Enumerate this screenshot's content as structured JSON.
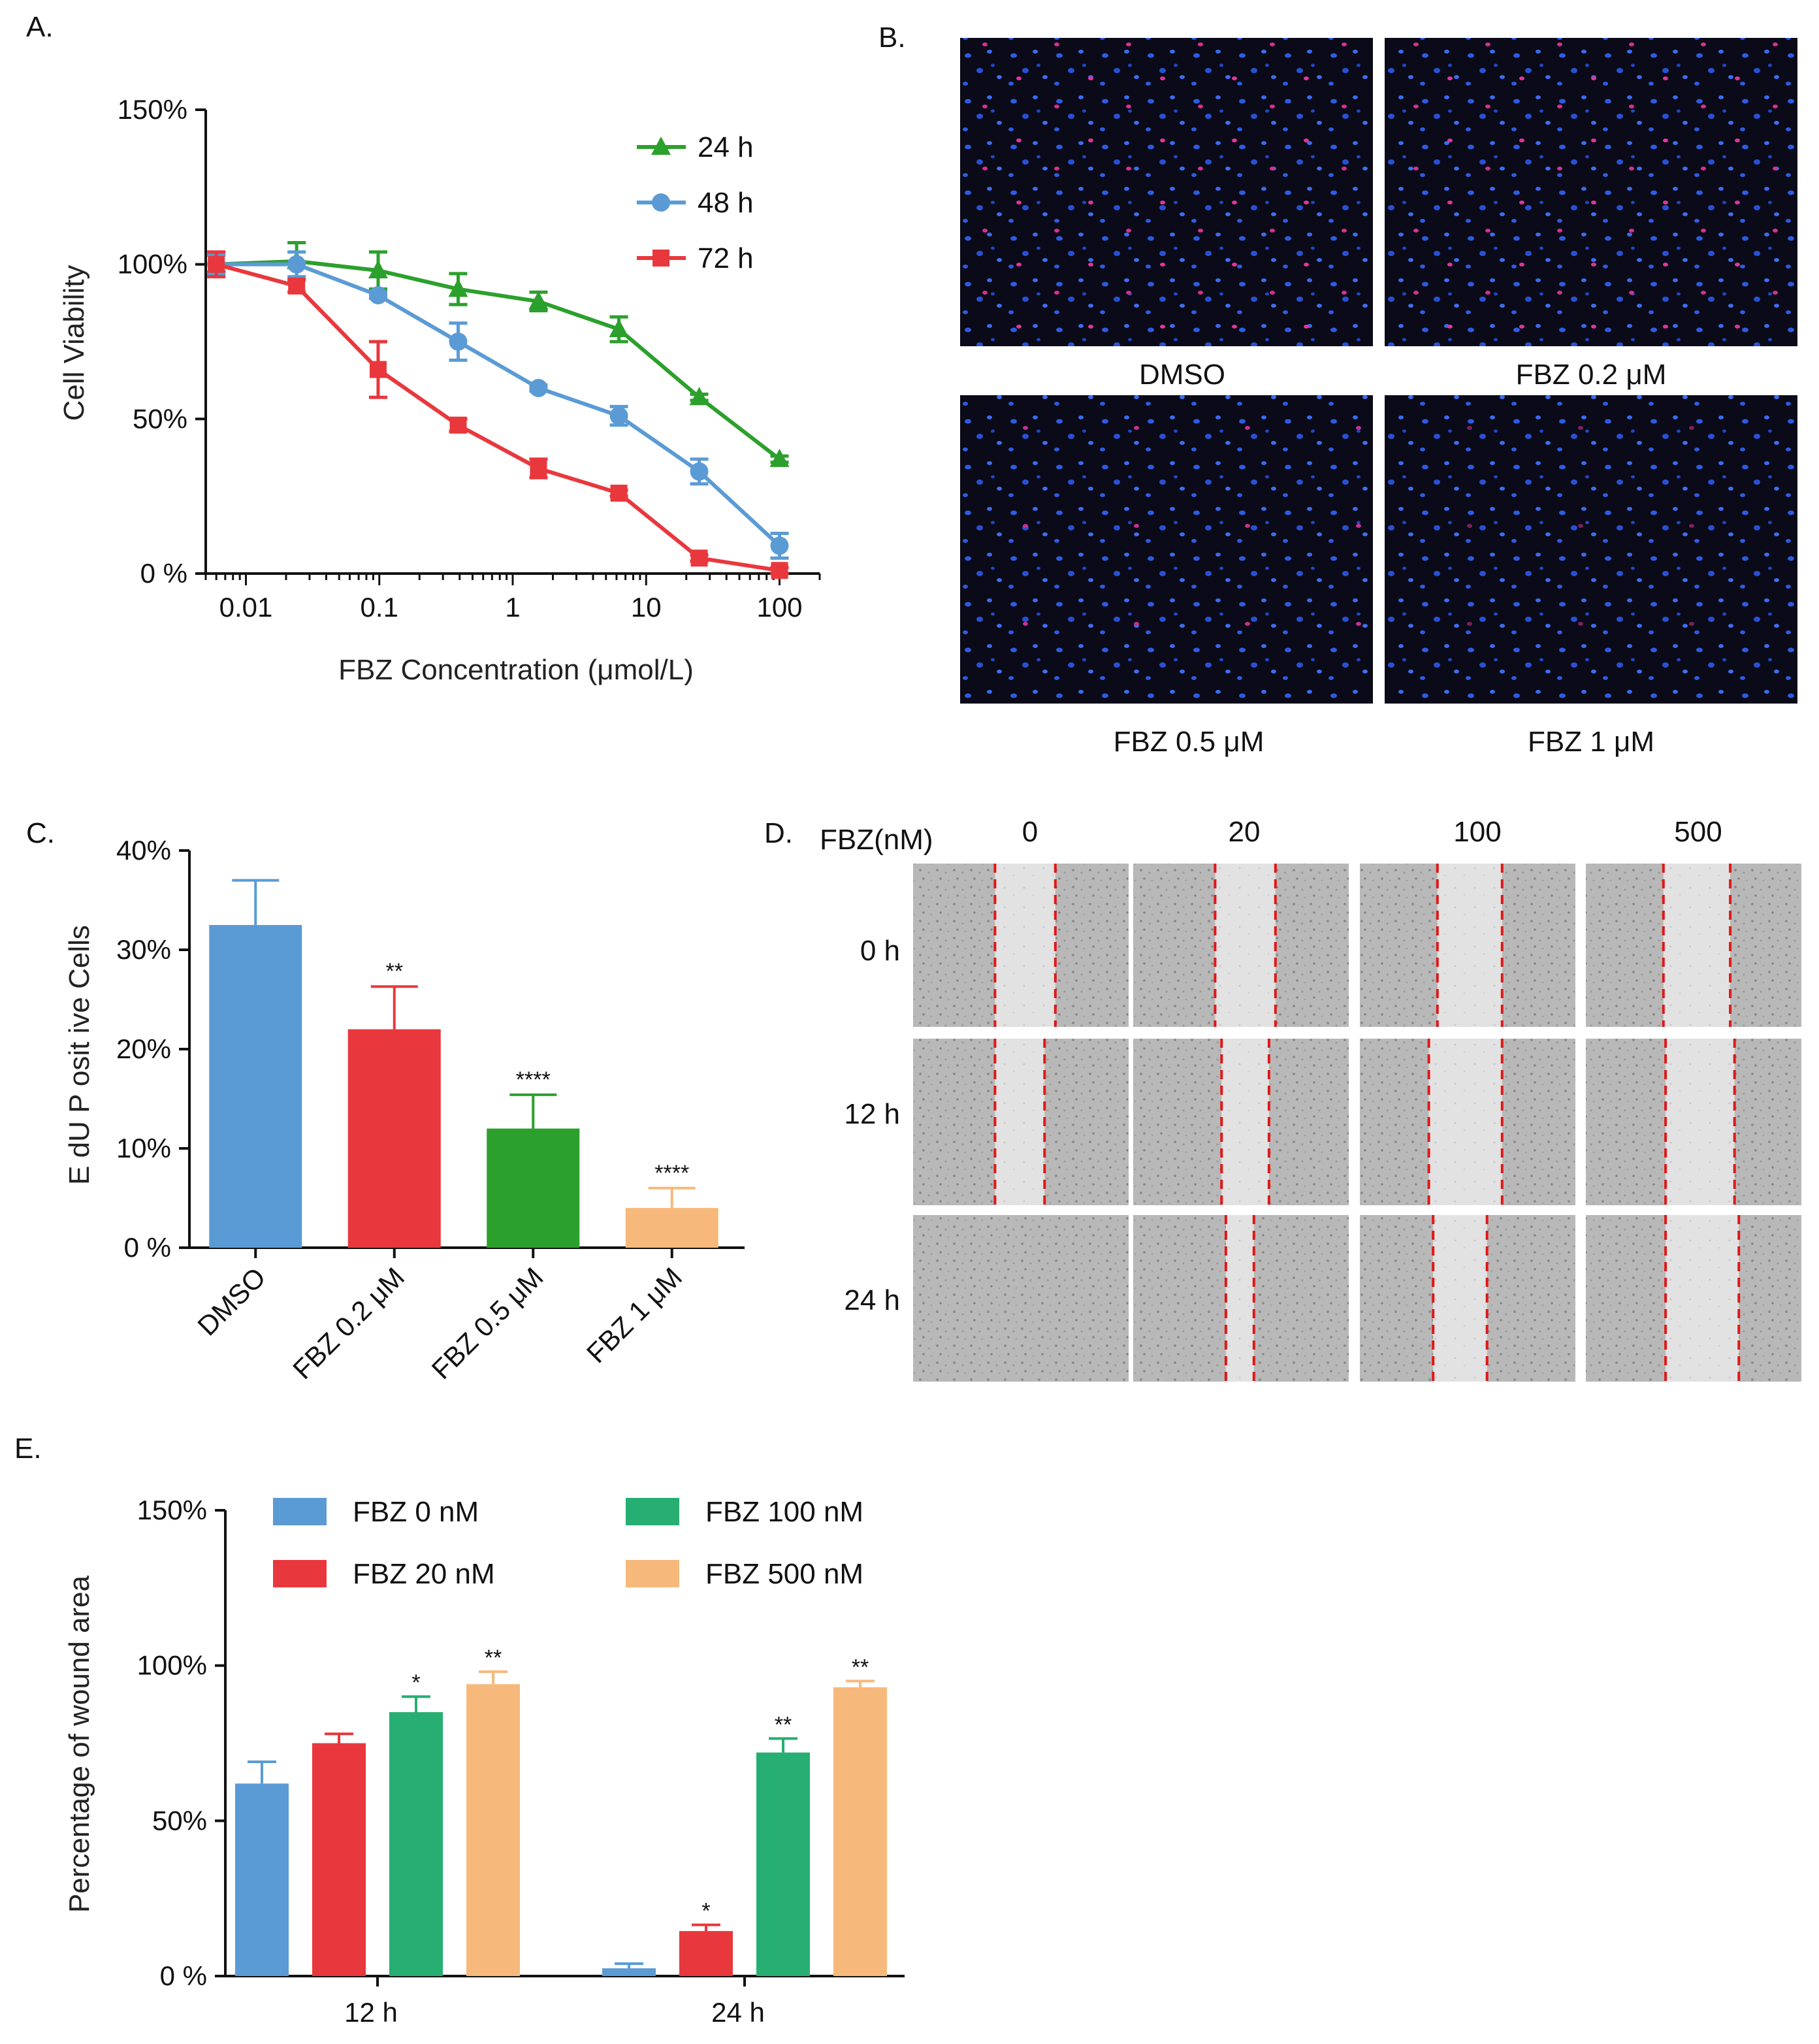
{
  "panel_labels": {
    "A": "A.",
    "B": "B.",
    "C": "C.",
    "D": "D.",
    "E": "E."
  },
  "colors": {
    "green": "#2ca02c",
    "blue": "#5b9bd5",
    "red": "#e8383d",
    "orange": "#f7b97b",
    "teal": "#27ae72"
  },
  "chart_data": [
    {
      "id": "A",
      "type": "line",
      "xlabel": "FBZ Concentration (μmol/L)",
      "ylabel": "Cell Viability",
      "xscale": "log",
      "xlim": [
        0.005,
        200
      ],
      "ylim": [
        0,
        150
      ],
      "yticks": [
        "0 %",
        "50%",
        "100%",
        "150%"
      ],
      "ytick_values": [
        0,
        50,
        100,
        150
      ],
      "xticks": [
        "0.01",
        "0.1",
        "1",
        "10",
        "100"
      ],
      "xtick_values": [
        0.01,
        0.1,
        1,
        10,
        100
      ],
      "legend_position": "top-right",
      "series": [
        {
          "name": "24 h",
          "color": "#2ca02c",
          "marker": "triangle",
          "x": [
            0.006,
            0.024,
            0.098,
            0.39,
            1.56,
            6.25,
            25,
            100
          ],
          "y": [
            100,
            101,
            98,
            92,
            88,
            79,
            57,
            37
          ],
          "err": [
            3,
            6,
            6,
            5,
            3,
            4,
            1,
            1
          ]
        },
        {
          "name": "48 h",
          "color": "#5b9bd5",
          "marker": "circle",
          "x": [
            0.006,
            0.024,
            0.098,
            0.39,
            1.56,
            6.25,
            25,
            100
          ],
          "y": [
            100,
            100,
            90,
            75,
            60,
            51,
            33,
            9
          ],
          "err": [
            3,
            4,
            1,
            6,
            1,
            3,
            4,
            4
          ]
        },
        {
          "name": "72 h",
          "color": "#e8383d",
          "marker": "square",
          "x": [
            0.006,
            0.024,
            0.098,
            0.39,
            1.56,
            6.25,
            25,
            100
          ],
          "y": [
            100,
            93,
            66,
            48,
            34,
            26,
            5,
            1
          ],
          "err": [
            4,
            2,
            9,
            2,
            3,
            1,
            1,
            1
          ]
        }
      ]
    },
    {
      "id": "C",
      "type": "bar",
      "ylabel": "E dU  P osit ive  Cells",
      "ylim": [
        0,
        40
      ],
      "yticks": [
        "0 %",
        "10%",
        "20%",
        "30%",
        "40%"
      ],
      "ytick_values": [
        0,
        10,
        20,
        30,
        40
      ],
      "categories": [
        "DMSO",
        "FBZ 0.2 μM",
        "FBZ 0.5 μM",
        "FBZ 1 μM"
      ],
      "values": [
        32.5,
        22,
        12,
        4
      ],
      "err": [
        4.5,
        4.3,
        3.4,
        2
      ],
      "colors": [
        "#5b9bd5",
        "#e8383d",
        "#2ca02c",
        "#f7b97b"
      ],
      "annotations": [
        "",
        "**",
        "****",
        "****"
      ]
    },
    {
      "id": "E",
      "type": "bar",
      "ylabel": "Percentage of wound area",
      "ylim": [
        0,
        150
      ],
      "yticks": [
        "0 %",
        "50%",
        "100%",
        "150%"
      ],
      "ytick_values": [
        0,
        50,
        100,
        150
      ],
      "categories": [
        "12  h",
        "24  h"
      ],
      "legend_position": "top",
      "series": [
        {
          "name": "FBZ  0  nM",
          "color": "#5b9bd5",
          "values": [
            62,
            2.5
          ],
          "err": [
            7,
            1.5
          ],
          "annotations": [
            "",
            ""
          ]
        },
        {
          "name": "FBZ  20  nM",
          "color": "#e8383d",
          "values": [
            75,
            14.5
          ],
          "err": [
            3,
            2
          ],
          "annotations": [
            "",
            "*"
          ]
        },
        {
          "name": "FBZ  100  nM",
          "color": "#27ae72",
          "values": [
            85,
            72
          ],
          "err": [
            5,
            4.5
          ],
          "annotations": [
            "*",
            "**"
          ]
        },
        {
          "name": "FBZ  500  nM",
          "color": "#f7b97b",
          "values": [
            94,
            93
          ],
          "err": [
            4,
            2
          ],
          "annotations": [
            "**",
            "**"
          ]
        }
      ]
    }
  ],
  "panel_b": {
    "captions": [
      "DMSO",
      "FBZ 0.2 μM",
      "FBZ 0.5 μM",
      "FBZ 1 μM"
    ]
  },
  "panel_d": {
    "header_label": "FBZ(nM)",
    "columns": [
      "0",
      "20",
      "100",
      "500"
    ],
    "rows": [
      "0 h",
      "12 h",
      "24 h"
    ]
  }
}
